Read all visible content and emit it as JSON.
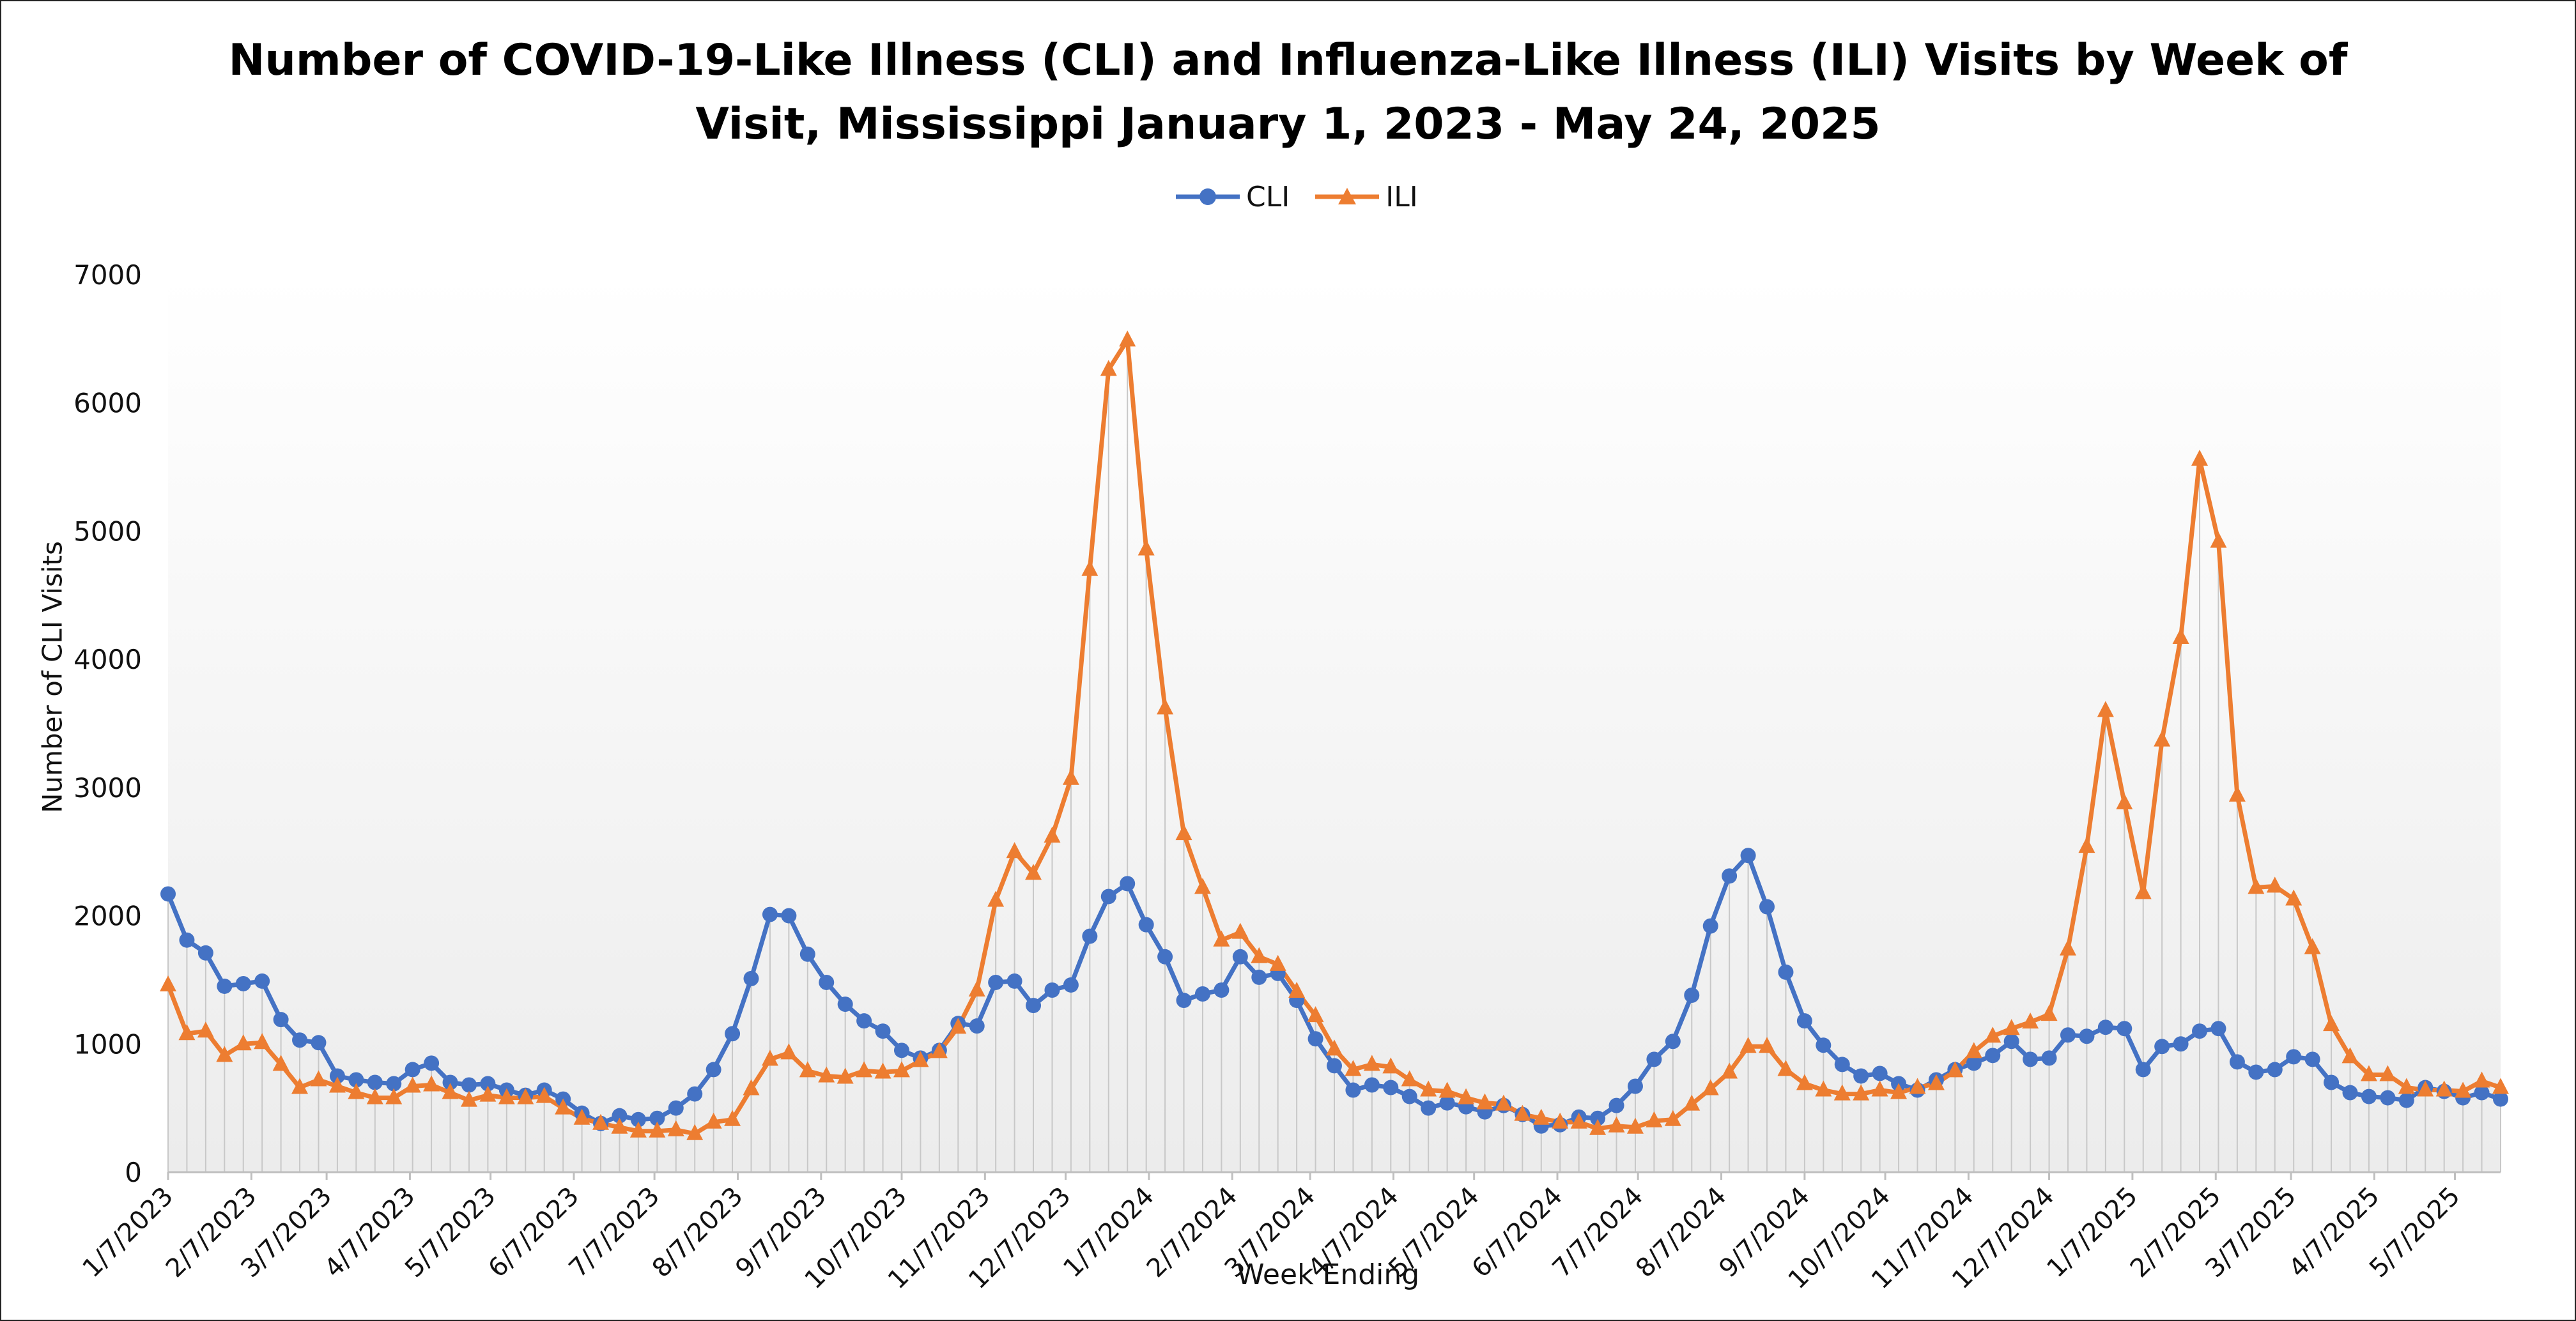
{
  "chart_data": {
    "type": "line",
    "title_lines": [
      "Number of COVID-19-Like Illness (CLI) and Influenza-Like Illness (ILI) Visits by Week of",
      "Visit, Mississippi January 1, 2023 - May 24, 2025"
    ],
    "xlabel": "Week Ending",
    "ylabel": "Number of CLI Visits",
    "ylim": [
      0,
      7000
    ],
    "y_ticks": [
      "0",
      "1000",
      "2000",
      "3000",
      "4000",
      "5000",
      "6000",
      "7000"
    ],
    "x_tick_labels": [
      "1/7/2023",
      "2/7/2023",
      "3/7/2023",
      "4/7/2023",
      "5/7/2023",
      "6/7/2023",
      "7/7/2023",
      "8/7/2023",
      "9/7/2023",
      "10/7/2023",
      "11/7/2023",
      "12/7/2023",
      "1/7/2024",
      "2/7/2024",
      "3/7/2024",
      "4/7/2024",
      "5/7/2024",
      "6/7/2024",
      "7/7/2024",
      "8/7/2024",
      "9/7/2024",
      "10/7/2024",
      "11/7/2024",
      "12/7/2024",
      "1/7/2025",
      "2/7/2025",
      "3/7/2025",
      "4/7/2025",
      "5/7/2025"
    ],
    "x_start": "2023-01-07",
    "x_end": "2025-05-24",
    "legend_position": "top-center",
    "grid": "vertical drop lines at each week",
    "series": [
      {
        "name": "CLI",
        "color": "#4472C4",
        "marker": "circle",
        "values": [
          2170,
          1810,
          1710,
          1450,
          1470,
          1490,
          1190,
          1030,
          1010,
          750,
          720,
          700,
          690,
          800,
          850,
          700,
          680,
          690,
          640,
          600,
          640,
          570,
          460,
          380,
          440,
          410,
          420,
          500,
          610,
          800,
          1080,
          1510,
          2010,
          2000,
          1700,
          1480,
          1310,
          1180,
          1100,
          950,
          890,
          950,
          1160,
          1140,
          1480,
          1490,
          1300,
          1420,
          1460,
          1840,
          2150,
          2250,
          1930,
          1680,
          1340,
          1390,
          1420,
          1680,
          1520,
          1550,
          1340,
          1040,
          830,
          640,
          680,
          660,
          590,
          500,
          540,
          510,
          470,
          520,
          450,
          360,
          370,
          430,
          420,
          520,
          670,
          880,
          1020,
          1380,
          1920,
          2310,
          2470,
          2070,
          1560,
          1180,
          990,
          840,
          750,
          770,
          690,
          640,
          720,
          800,
          850,
          910,
          1020,
          880,
          890,
          1070,
          1060,
          1130,
          1120,
          800,
          980,
          1000,
          1100,
          1120,
          860,
          780,
          800,
          900,
          880,
          700,
          620,
          590,
          580,
          560,
          660,
          630,
          580,
          620,
          570
        ]
      },
      {
        "name": "ILI",
        "color": "#ED7D31",
        "marker": "triangle",
        "values": [
          1460,
          1080,
          1100,
          910,
          1000,
          1010,
          840,
          660,
          720,
          670,
          620,
          580,
          580,
          670,
          680,
          620,
          560,
          600,
          580,
          580,
          590,
          500,
          420,
          380,
          350,
          320,
          320,
          330,
          300,
          390,
          410,
          650,
          880,
          930,
          790,
          750,
          740,
          790,
          780,
          790,
          870,
          940,
          1130,
          1420,
          2120,
          2500,
          2330,
          2620,
          3070,
          4700,
          6260,
          6490,
          4860,
          3620,
          2640,
          2220,
          1810,
          1870,
          1680,
          1620,
          1410,
          1220,
          960,
          800,
          840,
          820,
          720,
          640,
          630,
          580,
          540,
          530,
          450,
          420,
          390,
          390,
          340,
          360,
          350,
          400,
          410,
          530,
          650,
          780,
          980,
          980,
          800,
          690,
          640,
          610,
          610,
          640,
          620,
          660,
          690,
          790,
          940,
          1060,
          1120,
          1170,
          1230,
          1740,
          2540,
          3600,
          2880,
          2180,
          3370,
          4170,
          5560,
          4920,
          2940,
          2220,
          2230,
          2130,
          1750,
          1150,
          900,
          760,
          760,
          660,
          640,
          640,
          630,
          710,
          660
        ]
      }
    ]
  }
}
